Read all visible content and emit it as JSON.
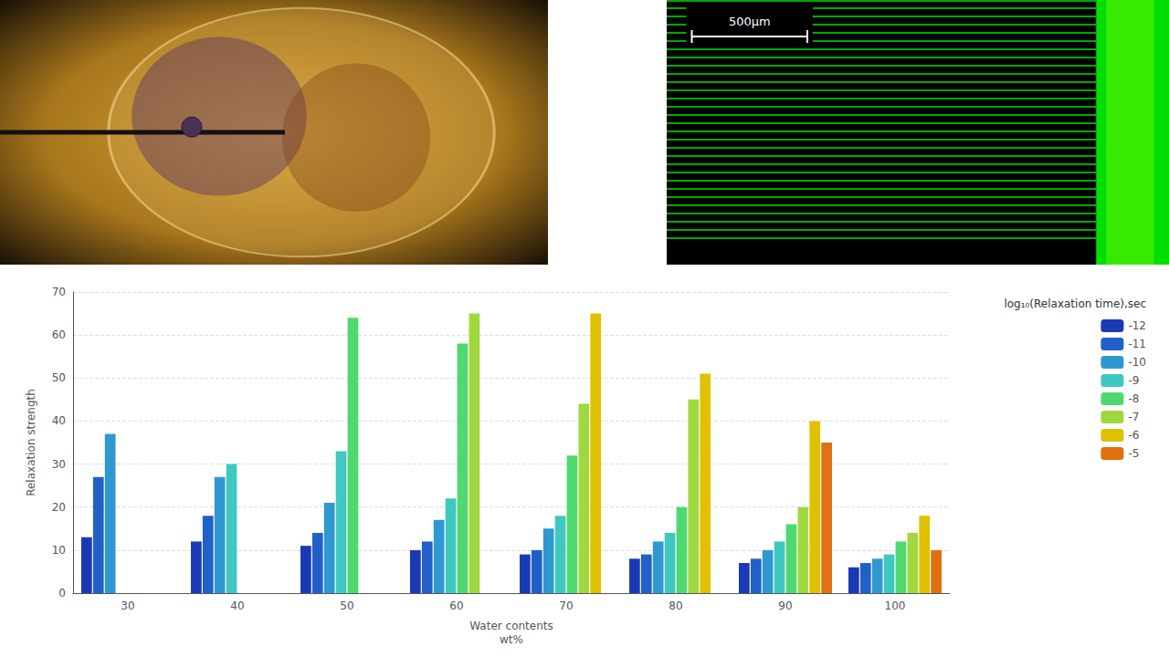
{
  "chart_data": {
    "type": "bar",
    "xlabel": "Water contents\nwt%",
    "ylabel": "Relaxation strength",
    "zlabel": "log₁₀(Relaxation time),sec",
    "categories": [
      "30",
      "40",
      "50",
      "60",
      "70",
      "80",
      "90",
      "100"
    ],
    "series": [
      {
        "name": "-12",
        "color": "#1a3ab5",
        "values": [
          13,
          12,
          11,
          10,
          9,
          8,
          7,
          6
        ]
      },
      {
        "name": "-11",
        "color": "#2060c8",
        "values": [
          27,
          18,
          14,
          12,
          10,
          9,
          8,
          7
        ]
      },
      {
        "name": "-10",
        "color": "#3098d0",
        "values": [
          37,
          27,
          21,
          17,
          15,
          12,
          10,
          8
        ]
      },
      {
        "name": "-9",
        "color": "#40c8c0",
        "values": [
          0,
          30,
          33,
          22,
          18,
          14,
          12,
          9
        ]
      },
      {
        "name": "-8",
        "color": "#50d870",
        "values": [
          0,
          0,
          64,
          58,
          32,
          20,
          16,
          12
        ]
      },
      {
        "name": "-7",
        "color": "#a0d840",
        "values": [
          0,
          0,
          0,
          65,
          44,
          45,
          20,
          14
        ]
      },
      {
        "name": "-6",
        "color": "#e0c000",
        "values": [
          0,
          0,
          0,
          0,
          65,
          51,
          40,
          18
        ]
      },
      {
        "name": "-5",
        "color": "#e07010",
        "values": [
          0,
          0,
          0,
          0,
          0,
          0,
          35,
          10
        ]
      }
    ],
    "ylim": [
      0,
      70
    ],
    "yticks": [
      0,
      10,
      20,
      30,
      40,
      50,
      60,
      70
    ],
    "grid": true,
    "legend": "right",
    "annotations": [
      "500μm"
    ]
  }
}
